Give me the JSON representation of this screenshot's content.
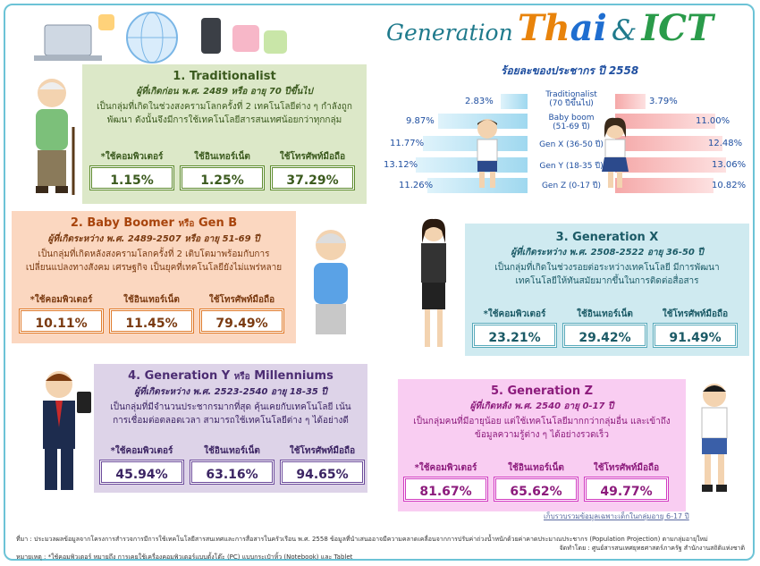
{
  "title": {
    "generation": "Generation",
    "thai_a": "Th",
    "thai_b": "ai",
    "amp": "&",
    "ict": "ICT"
  },
  "population": {
    "subtitle": "ร้อยละของประชากร ปี 2558",
    "rows": [
      {
        "label": "Traditionalist",
        "sub": "(70 ปีขึ้นไป)",
        "left": "2.83%",
        "right": "3.79%",
        "left_value": 2.83,
        "right_value": 3.79
      },
      {
        "label": "Baby boom",
        "sub": "(51-69 ปี)",
        "left": "9.87%",
        "right": "11.00%",
        "left_value": 9.87,
        "right_value": 11.0
      },
      {
        "label": "Gen X (36-50 ปี)",
        "sub": "",
        "left": "11.77%",
        "right": "12.48%",
        "left_value": 11.77,
        "right_value": 12.48
      },
      {
        "label": "Gen Y (18-35 ปี)",
        "sub": "",
        "left": "13.12%",
        "right": "13.06%",
        "left_value": 13.12,
        "right_value": 13.06
      },
      {
        "label": "Gen Z (0-17 ปี)",
        "sub": "",
        "left": "11.26%",
        "right": "10.82%",
        "left_value": 11.26,
        "right_value": 10.82
      }
    ]
  },
  "stat_labels": {
    "computer": "*ใช้คอมพิวเตอร์",
    "internet": "ใช้อินเทอร์เน็ต",
    "mobile": "ใช้โทรศัพท์มือถือ"
  },
  "cards": {
    "c1": {
      "num": "1.",
      "name": "Traditionalist",
      "range": "ผู้ที่เกิดก่อน พ.ศ. 2489 หรือ อายุ 70 ปีขึ้นไป",
      "desc": "เป็นกลุ่มที่เกิดในช่วงสงครามโลกครั้งที่ 2 เทคโนโลยีต่าง ๆ กำลังถูกพัฒนา ดังนั้นจึงมีการใช้เทคโนโลยีสารสนเทศน้อยกว่าทุกกลุ่ม",
      "computer": "1.15%",
      "internet": "1.25%",
      "mobile": "37.29%"
    },
    "c2": {
      "num": "2.",
      "name": "Baby Boomer",
      "or": "หรือ",
      "alt": "Gen B",
      "range": "ผู้ที่เกิดระหว่าง พ.ศ. 2489-2507 หรือ อายุ 51-69 ปี",
      "desc": "เป็นกลุ่มที่เกิดหลังสงครามโลกครั้งที่ 2 เติบโตมาพร้อมกับการเปลี่ยนแปลงทางสังคม เศรษฐกิจ เป็นยุคที่เทคโนโลยียังไม่แพร่หลาย",
      "computer": "10.11%",
      "internet": "11.45%",
      "mobile": "79.49%"
    },
    "c3": {
      "num": "3.",
      "name": "Generation X",
      "range": "ผู้ที่เกิดระหว่าง พ.ศ. 2508-2522 อายุ 36-50 ปี",
      "desc": "เป็นกลุ่มที่เกิดในช่วงรอยต่อระหว่างเทคโนโลยี มีการพัฒนาเทคโนโลยีให้ทันสมัยมากขึ้นในการติดต่อสื่อสาร",
      "computer": "23.21%",
      "internet": "29.42%",
      "mobile": "91.49%"
    },
    "c4": {
      "num": "4.",
      "name": "Generation Y",
      "or": "หรือ",
      "alt": "Millenniums",
      "range": "ผู้ที่เกิดระหว่าง พ.ศ. 2523-2540 อายุ 18-35 ปี",
      "desc": "เป็นกลุ่มที่มีจำนวนประชากรมากที่สุด คุ้นเคยกับเทคโนโลยี เน้นการเชื่อมต่อตลอดเวลา สามารถใช้เทคโนโลยีต่าง ๆ ได้อย่างดี",
      "computer": "45.94%",
      "internet": "63.16%",
      "mobile": "94.65%"
    },
    "c5": {
      "num": "5.",
      "name": "Generation Z",
      "range": "ผู้ที่เกิดหลัง พ.ศ. 2540 อายุ 0-17 ปี",
      "desc": "เป็นกลุ่มคนที่มีอายุน้อย แต่ใช้เทคโนโลยีมากกว่ากลุ่มอื่น และเข้าถึงข้อมูลความรู้ต่าง ๆ ได้อย่างรวดเร็ว",
      "computer": "81.67%",
      "internet": "65.62%",
      "mobile": "49.77%"
    }
  },
  "footnote": "เก็บรวบรวมข้อมูลเฉพาะเด็กในกลุ่มอายุ 6-17 ปี",
  "source_line": "ที่มา : ประมวลผลข้อมูลจากโครงการสำรวจการมีการใช้เทคโนโลยีสารสนเทศและการสื่อสารในครัวเรือน พ.ศ. 2558 ข้อมูลที่นำเสนออาจมีความคลาดเคลื่อนจากการปรับค่าถ่วงน้ำหนักด้วยค่าคาดประมาณประชากร (Population Projection) ตามกลุ่มอายุใหม่",
  "note_line": "หมายเหตุ : *ใช้คอมพิวเตอร์ หมายถึง การเคยใช้เครื่องคอมพิวเตอร์แบบตั้งโต๊ะ (PC) แบบกระเป๋าหิ้ว (Notebook) และ Tablet",
  "credit_line": "จัดทำโดย : ศูนย์สารสนเทศยุทธศาสตร์ภาครัฐ สำนักงานสถิติแห่งชาติ",
  "colors": {
    "c1": "#dce8c8",
    "c2": "#fbd7c0",
    "c3": "#cfeaf0",
    "c4": "#ddd3e8",
    "c5": "#f9cdf2"
  }
}
